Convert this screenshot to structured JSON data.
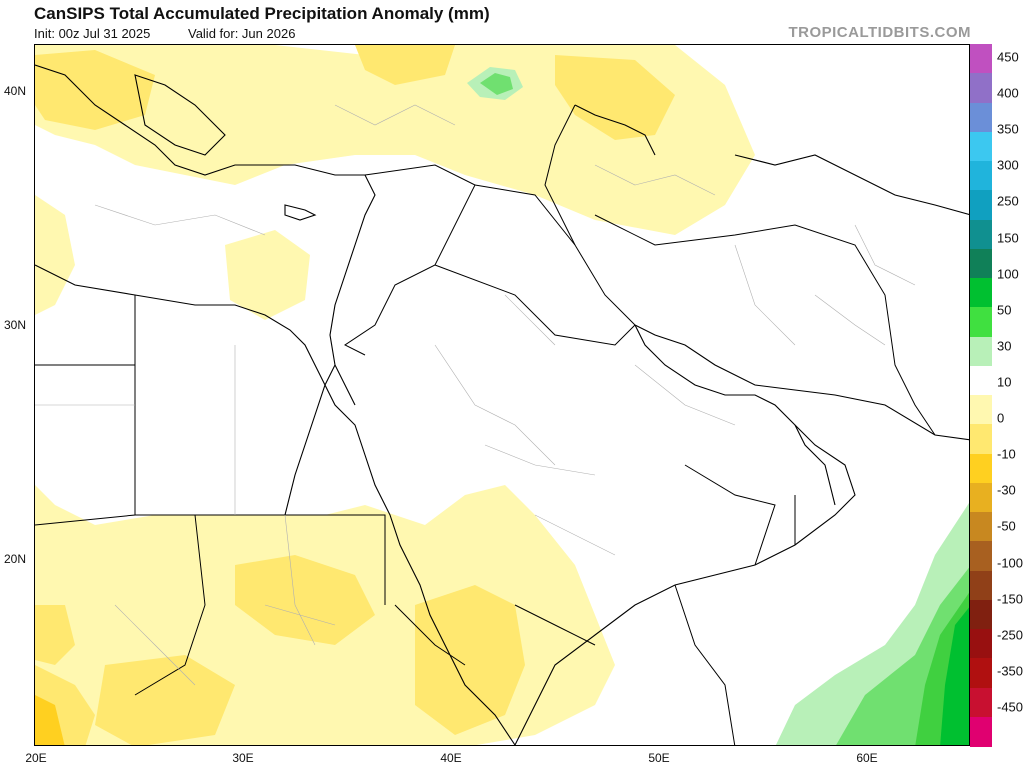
{
  "header": {
    "title": "CanSIPS Total Accumulated Precipitation Anomaly (mm)",
    "init": "Init: 00z Jul 31 2025",
    "valid": "Valid for: Jun 2026",
    "brand": "TROPICALTIDBITS.COM"
  },
  "axes": {
    "lat_ticks": [
      "40N",
      "30N",
      "20N"
    ],
    "lon_ticks": [
      "20E",
      "30E",
      "40E",
      "50E",
      "60E"
    ]
  },
  "colorbar": {
    "labels": [
      "450",
      "400",
      "350",
      "300",
      "250",
      "150",
      "100",
      "50",
      "30",
      "10",
      "0",
      "-10",
      "-30",
      "-50",
      "-100",
      "-150",
      "-250",
      "-350",
      "-450"
    ],
    "colors": [
      "#c050c0",
      "#9070c8",
      "#6b8fd8",
      "#3cc8f0",
      "#20b4dc",
      "#10a0c0",
      "#109090",
      "#108058",
      "#00c030",
      "#40e040",
      "#b8f0b8",
      "#ffffff",
      "#fff8b0",
      "#ffe870",
      "#ffd020",
      "#e8b020",
      "#c88820",
      "#a86020",
      "#904018",
      "#802010",
      "#981010",
      "#b01010",
      "#c81030",
      "#e00070"
    ]
  }
}
